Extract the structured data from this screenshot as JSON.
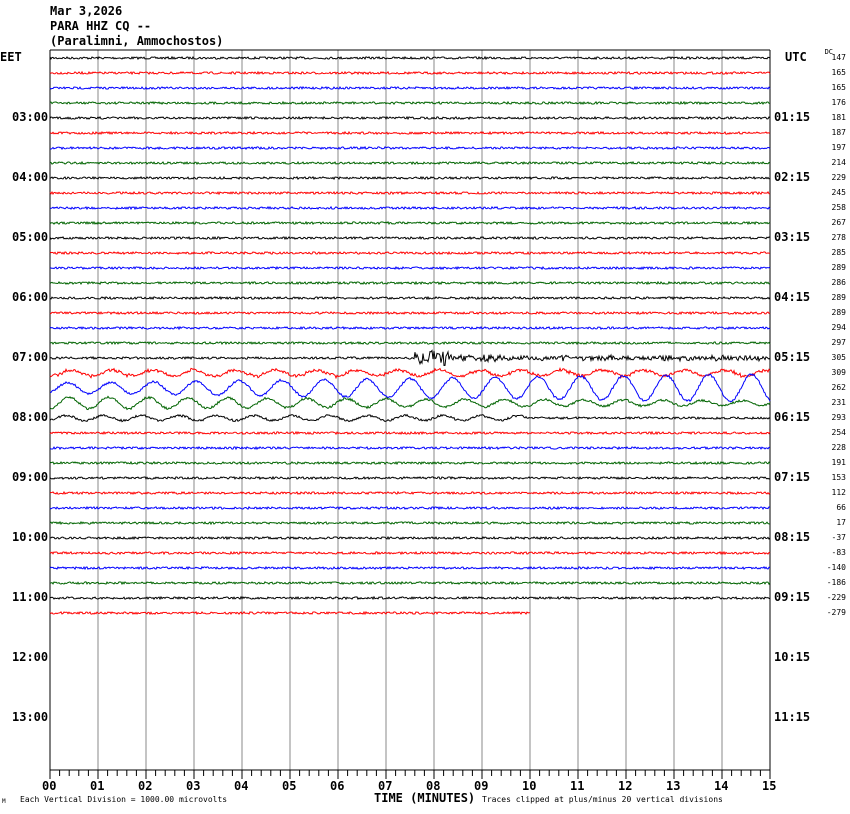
{
  "header": {
    "date": "Mar 3,2026",
    "station": "PARA HHZ CQ --",
    "location": "(Paralimni, Ammochostos)"
  },
  "left_zone": "EET",
  "right_zone": "UTC",
  "dc_label": "DC",
  "footer": {
    "scale": "Each Vertical Division = 1000.00 microvolts",
    "xlabel": "TIME (MINUTES)",
    "clip_note": "Traces clipped at plus/minus 20 vertical divisions",
    "corner_mark": "M"
  },
  "chart_data": {
    "type": "line",
    "title": "PARA HHZ CQ --",
    "xlabel": "TIME (MINUTES)",
    "xlim": [
      0,
      15
    ],
    "x_ticks": [
      "00",
      "01",
      "02",
      "03",
      "04",
      "05",
      "06",
      "07",
      "08",
      "09",
      "10",
      "11",
      "12",
      "13",
      "14",
      "15"
    ],
    "left_hour_labels": [
      "03:00",
      "04:00",
      "05:00",
      "06:00",
      "07:00",
      "08:00",
      "09:00",
      "10:00",
      "11:00",
      "12:00",
      "13:00"
    ],
    "right_hour_labels": [
      "01:15",
      "02:15",
      "03:15",
      "04:15",
      "05:15",
      "06:15",
      "07:15",
      "08:15",
      "09:15",
      "10:15",
      "11:15"
    ],
    "trace_colors": [
      "#000000",
      "#ff0000",
      "#0000ff",
      "#006400"
    ],
    "trace_minutes_per_line": 15,
    "dc_offsets": [
      147,
      165,
      165,
      176,
      181,
      187,
      197,
      214,
      229,
      245,
      258,
      267,
      278,
      285,
      289,
      286,
      289,
      289,
      294,
      297,
      305,
      309,
      262,
      231,
      293,
      254,
      228,
      191,
      153,
      112,
      66,
      17,
      -37,
      -83,
      -140,
      -186,
      -229,
      -279
    ],
    "last_trace_end_minute": 10,
    "events": [
      {
        "trace_index": 20,
        "start_minute": 7.6,
        "description_level": "local event"
      },
      {
        "trace_index": 21,
        "amplitude": "moderate long-period"
      },
      {
        "trace_index": 22,
        "amplitude": "large long-period"
      },
      {
        "trace_index": 23,
        "amplitude": "large long-period"
      }
    ]
  }
}
